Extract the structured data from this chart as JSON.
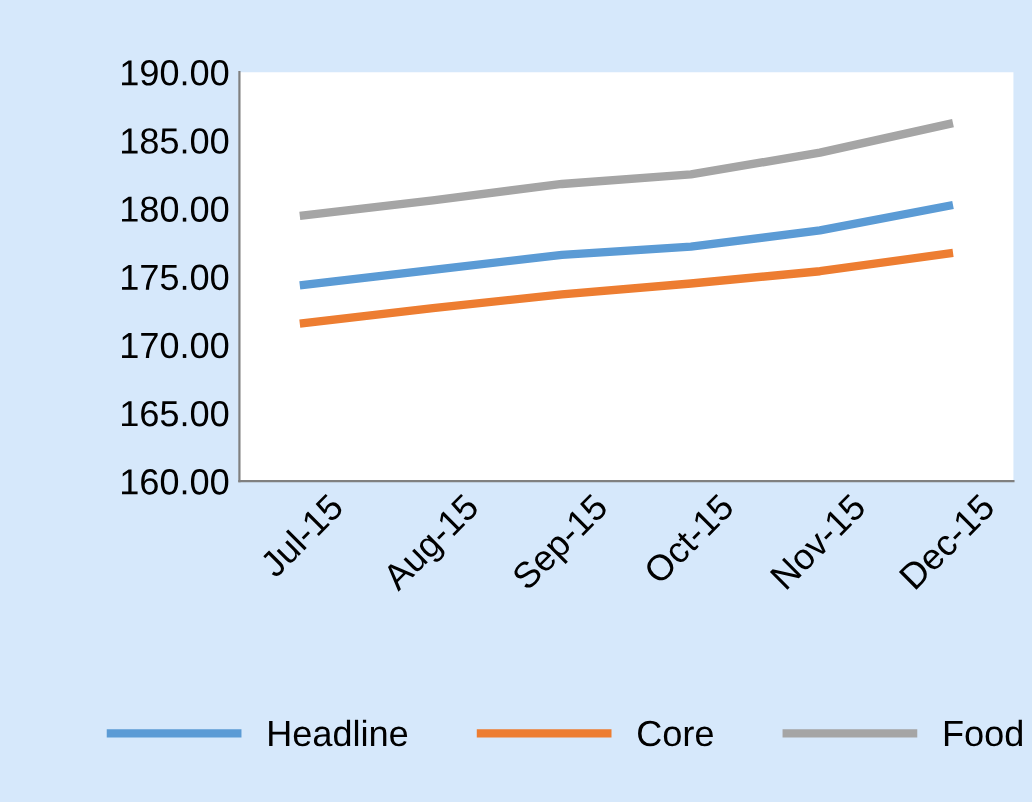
{
  "chart_data": {
    "type": "line",
    "categories": [
      "Jul-15",
      "Aug-15",
      "Sep-15",
      "Oct-15",
      "Nov-15",
      "Dec-15"
    ],
    "series": [
      {
        "name": "Headline",
        "color": "#5b9bd5",
        "values": [
          174.4,
          175.5,
          176.6,
          177.2,
          178.4,
          180.2
        ]
      },
      {
        "name": "Core",
        "color": "#ed7d31",
        "values": [
          171.6,
          172.7,
          173.7,
          174.5,
          175.4,
          176.7
        ]
      },
      {
        "name": "Food",
        "color": "#a5a5a5",
        "values": [
          179.5,
          180.6,
          181.8,
          182.5,
          184.1,
          186.2
        ]
      }
    ],
    "ylim": [
      160,
      190
    ],
    "yticks": [
      {
        "value": 160,
        "label": "160.00"
      },
      {
        "value": 165,
        "label": "165.00"
      },
      {
        "value": 170,
        "label": "170.00"
      },
      {
        "value": 175,
        "label": "175.00"
      },
      {
        "value": 180,
        "label": "180.00"
      },
      {
        "value": 185,
        "label": "185.00"
      },
      {
        "value": 190,
        "label": "190.00"
      }
    ],
    "grid": false,
    "legend": "bottom",
    "marker": "none",
    "line_style": "solid"
  }
}
